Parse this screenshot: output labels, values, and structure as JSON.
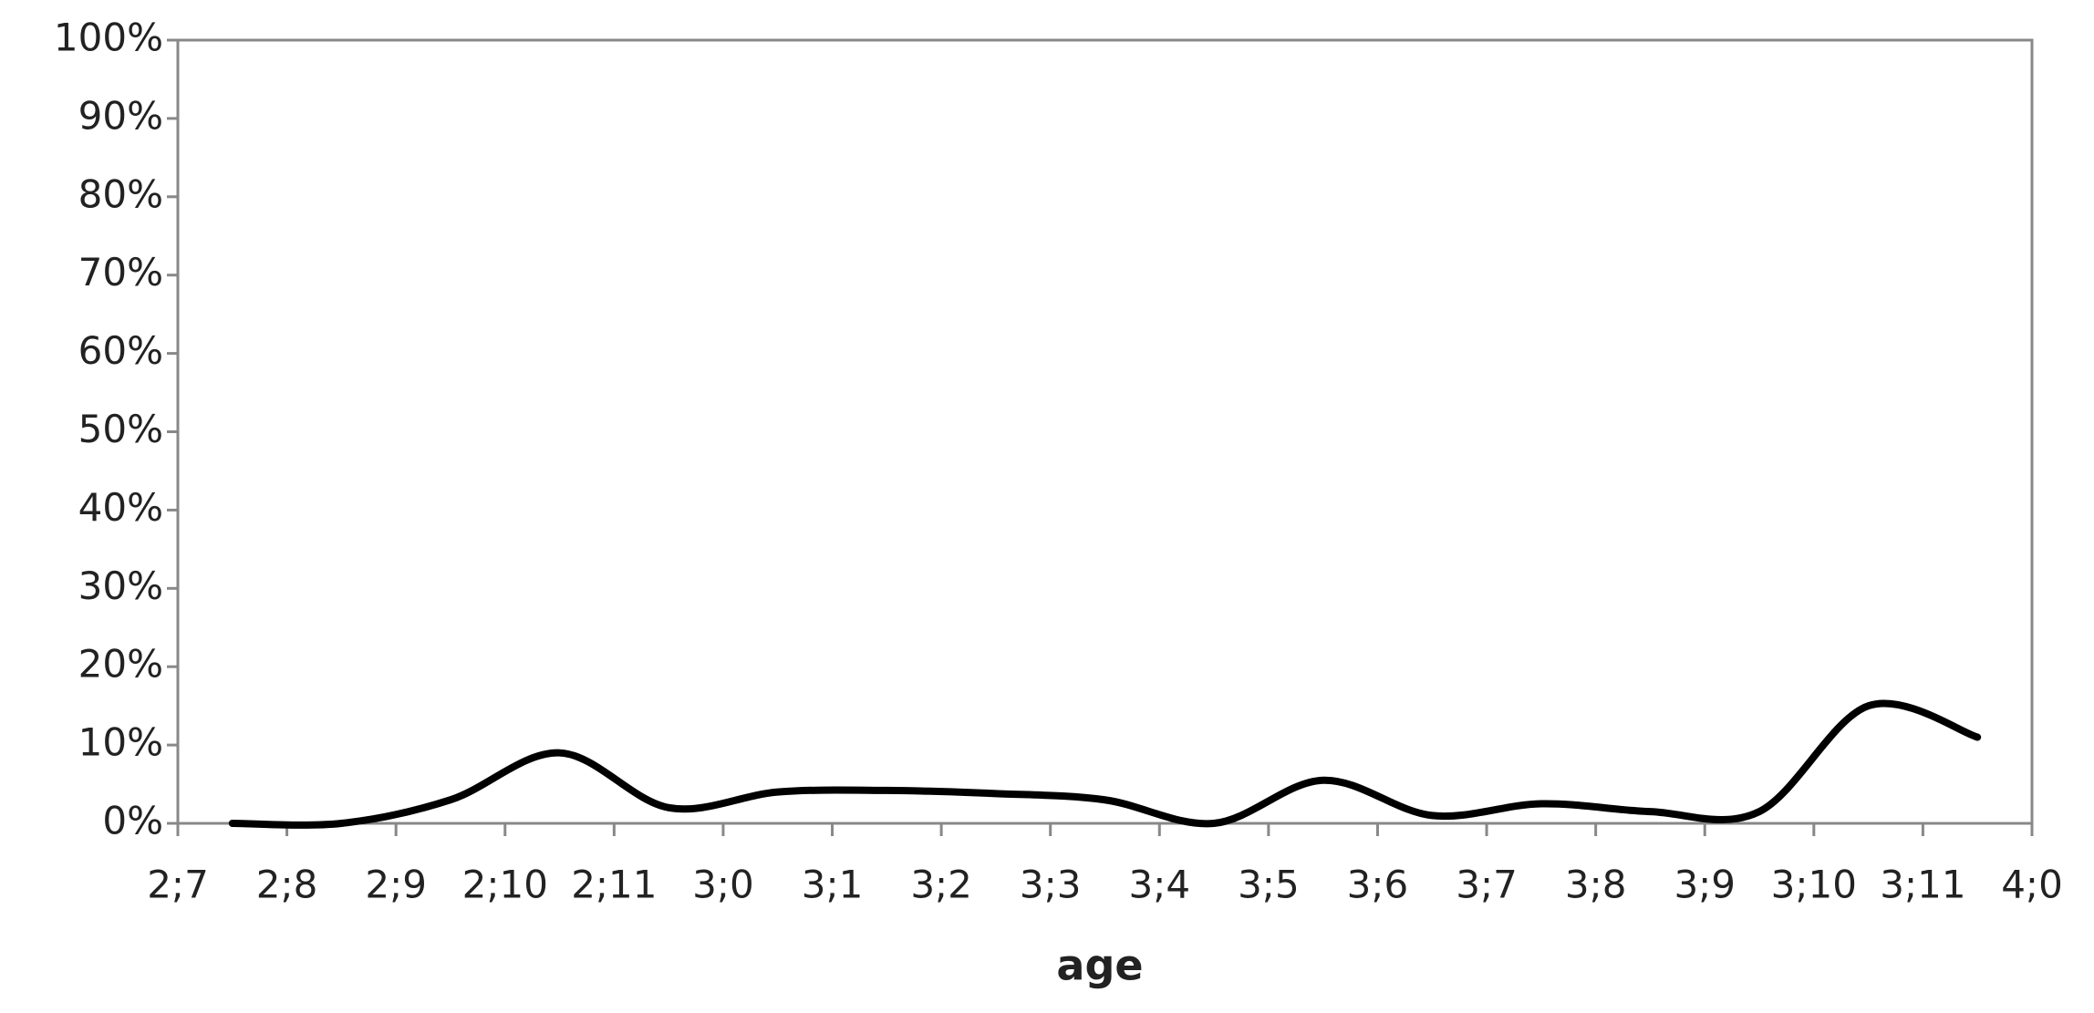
{
  "chart_data": {
    "type": "line",
    "x_label": "age",
    "x": [
      31.5,
      32.5,
      33.5,
      34.5,
      35.5,
      36.5,
      37.5,
      38.5,
      39.5,
      40.5,
      41.5,
      42.5,
      43.5,
      44.5,
      45.5,
      46.5,
      47.5
    ],
    "series": [
      {
        "color": "#000000",
        "values": [
          0,
          0,
          3,
          9,
          2,
          4,
          4.2,
          3.8,
          3,
          0,
          5.5,
          1,
          2.5,
          1.5,
          1.5,
          15,
          11
        ]
      }
    ],
    "xlim": [
      31,
      48
    ],
    "xticks": [
      {
        "value": 31,
        "label": "2;7"
      },
      {
        "value": 32,
        "label": "2;8"
      },
      {
        "value": 33,
        "label": "2;9"
      },
      {
        "value": 34,
        "label": "2;10"
      },
      {
        "value": 35,
        "label": "2;11"
      },
      {
        "value": 36,
        "label": "3;0"
      },
      {
        "value": 37,
        "label": "3;1"
      },
      {
        "value": 38,
        "label": "3;2"
      },
      {
        "value": 39,
        "label": "3;3"
      },
      {
        "value": 40,
        "label": "3;4"
      },
      {
        "value": 41,
        "label": "3;5"
      },
      {
        "value": 42,
        "label": "3;6"
      },
      {
        "value": 43,
        "label": "3;7"
      },
      {
        "value": 44,
        "label": "3;8"
      },
      {
        "value": 45,
        "label": "3;9"
      },
      {
        "value": 46,
        "label": "3;10"
      },
      {
        "value": 47,
        "label": "3;11"
      },
      {
        "value": 48,
        "label": "4;0"
      }
    ],
    "ylim": [
      0,
      100
    ],
    "yticks": [
      {
        "value": 0,
        "label": "0%"
      },
      {
        "value": 10,
        "label": "10%"
      },
      {
        "value": 20,
        "label": "20%"
      },
      {
        "value": 30,
        "label": "30%"
      },
      {
        "value": 40,
        "label": "40%"
      },
      {
        "value": 50,
        "label": "50%"
      },
      {
        "value": 60,
        "label": "60%"
      },
      {
        "value": 70,
        "label": "70%"
      },
      {
        "value": 80,
        "label": "80%"
      },
      {
        "value": 90,
        "label": "90%"
      },
      {
        "value": 100,
        "label": "100%"
      }
    ],
    "grid": false
  }
}
